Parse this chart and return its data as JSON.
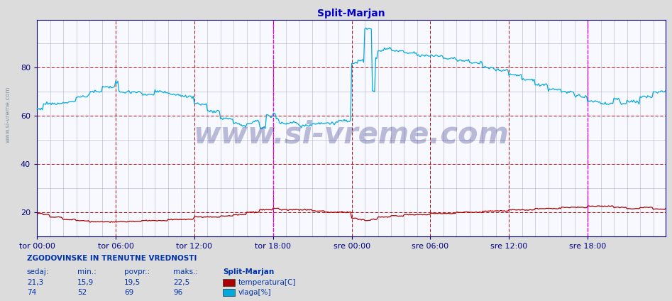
{
  "title": "Split-Marjan",
  "title_color": "#0000cc",
  "bg_color": "#dcdcdc",
  "plot_bg_color": "#f8f8ff",
  "grid_color_major_h": "#cc0000",
  "grid_color_major_v": "#cc0000",
  "grid_color_minor": "#b0b0c8",
  "tick_color": "#000080",
  "x_tick_labels": [
    "tor 00:00",
    "tor 06:00",
    "tor 12:00",
    "tor 18:00",
    "sre 00:00",
    "sre 06:00",
    "sre 12:00",
    "sre 18:00"
  ],
  "ylim": [
    10,
    100
  ],
  "yticks": [
    20,
    40,
    60,
    80
  ],
  "n_points": 576,
  "temp_color": "#aa0000",
  "vlaga_color": "#00aadd",
  "magenta_line_color": "#ee00ee",
  "watermark": "www.si-vreme.com",
  "watermark_color": "#000066",
  "watermark_alpha": 0.25,
  "legend_title": "ZGODOVINSKE IN TRENUTNE VREDNOSTI",
  "legend_col0": "sedaj:",
  "legend_col1": "min.:",
  "legend_col2": "povpr.:",
  "legend_col3": "maks.:",
  "station": "Split-Marjan",
  "temp_label": "temperatura[C]",
  "vlaga_label": "vlaga[%]",
  "temp_sedaj": "21,3",
  "temp_min": "15,9",
  "temp_povpr": "19,5",
  "temp_maks": "22,5",
  "vlaga_sedaj": "74",
  "vlaga_min": "52",
  "vlaga_povpr": "69",
  "vlaga_maks": "96",
  "left_label": "www.si-vreme.com"
}
